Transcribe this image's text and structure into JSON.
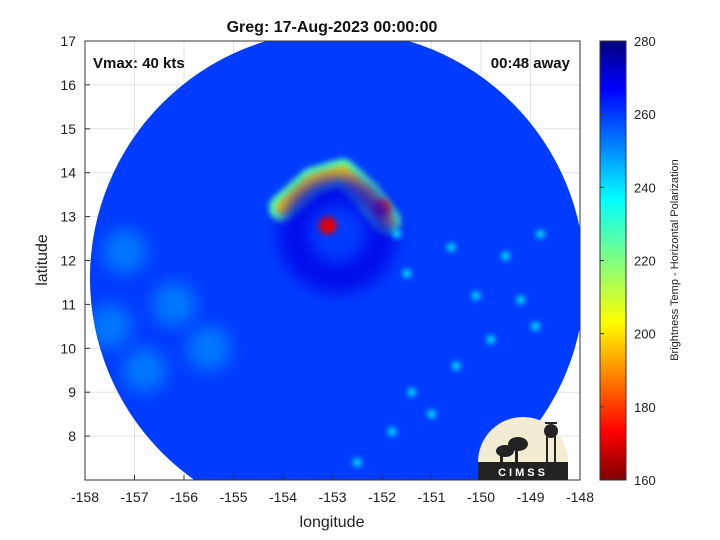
{
  "chart_data": {
    "type": "heatmap",
    "title": "Greg: 17-Aug-2023 00:00:00",
    "xlabel": "longitude",
    "ylabel": "latitude",
    "xlim": [
      -158,
      -148
    ],
    "ylim": [
      7,
      17
    ],
    "x_ticks": [
      "-158",
      "-157",
      "-156",
      "-155",
      "-154",
      "-153",
      "-152",
      "-151",
      "-150",
      "-149",
      "-148"
    ],
    "y_ticks": [
      "8",
      "9",
      "10",
      "11",
      "12",
      "13",
      "14",
      "15",
      "16",
      "17"
    ],
    "grid": true,
    "annotations": {
      "top_left": "Vmax: 40 kts",
      "top_right": "00:48 away"
    },
    "colorbar": {
      "label": "Brightness Temp - Horizontal Polarization",
      "range": [
        160,
        280
      ],
      "ticks": [
        "160",
        "180",
        "200",
        "220",
        "240",
        "260",
        "280"
      ],
      "colormap": "jet"
    },
    "swath": {
      "center_lon": -152.9,
      "center_lat": 11.6,
      "radius_deg": 5.0
    },
    "background_value": 258,
    "features": [
      {
        "type": "eyewall_arc",
        "value": 200,
        "points": [
          [
            -154.0,
            13.2
          ],
          [
            -153.4,
            13.8
          ],
          [
            -152.8,
            14.0
          ],
          [
            -152.3,
            13.5
          ],
          [
            -151.9,
            12.9
          ]
        ]
      },
      {
        "type": "cold_core",
        "lon": -153.1,
        "lat": 12.8,
        "value": 172
      },
      {
        "type": "cold_core",
        "lon": -152.0,
        "lat": 13.2,
        "value": 182
      },
      {
        "type": "warm_ring",
        "lon": -152.9,
        "lat": 12.6,
        "value": 268
      },
      {
        "type": "convective_cells",
        "value": 235,
        "points": [
          [
            -151.7,
            12.6
          ],
          [
            -151.5,
            11.7
          ],
          [
            -150.1,
            11.2
          ],
          [
            -149.2,
            11.1
          ],
          [
            -148.9,
            10.5
          ],
          [
            -149.8,
            10.2
          ],
          [
            -150.5,
            9.6
          ],
          [
            -151.4,
            9.0
          ],
          [
            -151.0,
            8.5
          ],
          [
            -151.8,
            8.1
          ],
          [
            -152.5,
            7.4
          ],
          [
            -149.5,
            12.1
          ],
          [
            -148.8,
            12.6
          ],
          [
            -150.6,
            12.3
          ]
        ]
      },
      {
        "type": "cool_band",
        "value": 248,
        "points": [
          [
            -157.5,
            10.5
          ],
          [
            -156.2,
            11.0
          ],
          [
            -155.5,
            10.0
          ],
          [
            -156.8,
            9.5
          ],
          [
            -157.2,
            12.2
          ]
        ]
      }
    ]
  },
  "logo": {
    "text": "CIMSS"
  }
}
